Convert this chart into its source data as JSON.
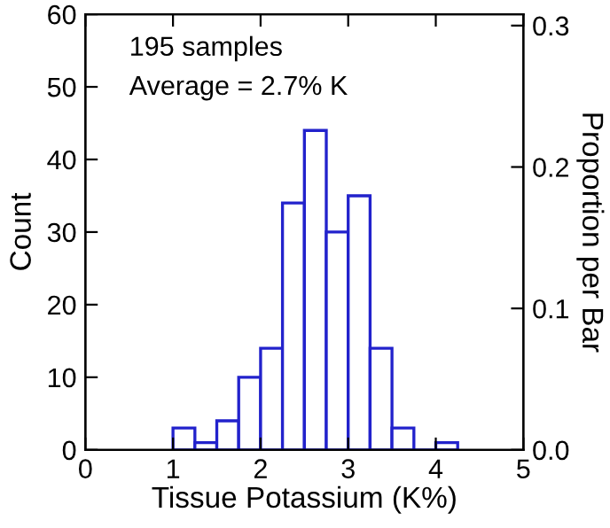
{
  "chart_data": {
    "type": "histogram",
    "xlabel": "Tissue Potassium (K%)",
    "ylabel": "Count",
    "y2label": "Proportion per Bar",
    "bins": [
      1.0,
      1.25,
      1.5,
      1.75,
      2.0,
      2.25,
      2.5,
      2.75,
      3.0,
      3.25,
      3.5,
      3.75,
      4.0,
      4.25
    ],
    "values": [
      3,
      1,
      4,
      10,
      14,
      34,
      44,
      30,
      35,
      14,
      3,
      0,
      1
    ],
    "color": "#2222cc",
    "xlim": [
      0,
      5
    ],
    "xticks": [
      0,
      1,
      2,
      3,
      4,
      5
    ],
    "ylim": [
      0,
      60
    ],
    "yticks": [
      0,
      10,
      20,
      30,
      40,
      50,
      60
    ],
    "y2lim": [
      0,
      0.308
    ],
    "y2ticks": [
      {
        "value": 0,
        "label": "0.0"
      },
      0.1,
      0.2,
      0.3
    ],
    "annotations": [
      "195 samples",
      "Average = 2.7% K"
    ],
    "grid": false,
    "legend": false
  }
}
